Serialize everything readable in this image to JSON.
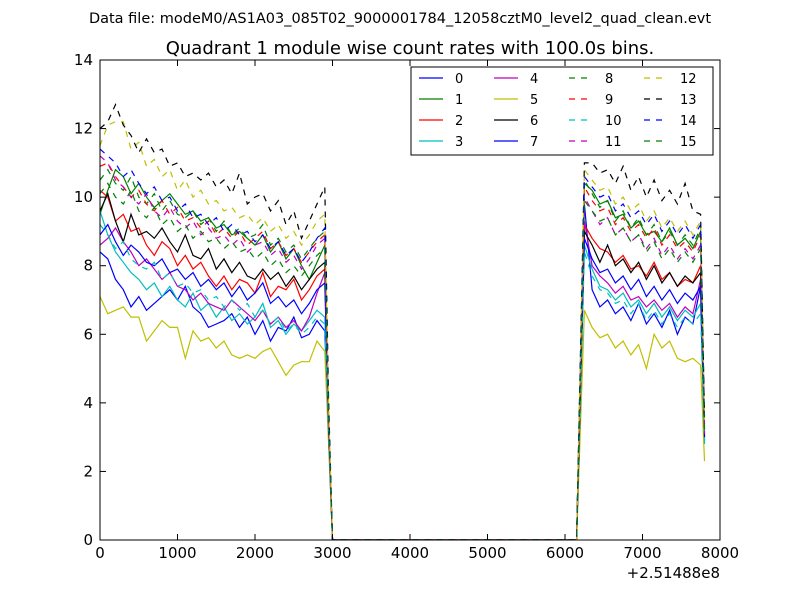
{
  "suptitle": "Data file: modeM0/AS1A03_085T02_9000001784_12058cztM0_level2_quad_clean.evt",
  "chart_data": {
    "type": "line",
    "title": "Quadrant 1 module wise count rates with 100.0s bins.",
    "xlabel": "",
    "ylabel": "",
    "xlim": [
      0,
      8000
    ],
    "ylim": [
      0,
      14
    ],
    "x_offset_label": "+2.51488e8",
    "x_ticks": [
      0,
      1000,
      2000,
      3000,
      4000,
      5000,
      6000,
      7000,
      8000
    ],
    "y_ticks": [
      0,
      2,
      4,
      6,
      8,
      10,
      12,
      14
    ],
    "x_tick_labels": [
      "0",
      "1000",
      "2000",
      "3000",
      "4000",
      "5000",
      "6000",
      "7000",
      "8000"
    ],
    "y_tick_labels": [
      "0",
      "2",
      "4",
      "6",
      "8",
      "10",
      "12",
      "14"
    ],
    "legend_position": "top-right",
    "legend_columns": 4,
    "segments": [
      {
        "x_start": 0,
        "x_end": 2900,
        "step": 100
      },
      {
        "x_start": 2950,
        "x_end": 3000,
        "step": 50
      },
      {
        "x_start": 3050,
        "x_end": 6150,
        "step": 100,
        "value": 0
      },
      {
        "x_start": 6250,
        "x_end": 7750,
        "step": 100
      }
    ],
    "series": [
      {
        "name": "0",
        "color": "#0000ff",
        "style": "solid",
        "first": [
          8.4,
          8.2,
          7.6,
          7.3,
          6.8,
          7.1,
          6.7,
          6.9,
          7.1,
          7.3,
          7.0,
          7.4,
          6.8,
          6.6,
          6.2,
          6.3,
          6.4,
          6.6,
          6.2,
          6.5,
          6.0,
          6.4,
          5.8,
          6.2,
          6.1,
          6.5,
          5.9,
          6.0,
          6.4,
          6.1
        ],
        "drop": [
          3.0,
          0.0
        ],
        "second": [
          9.8,
          7.3,
          6.8,
          7.0,
          6.6,
          6.8,
          6.4,
          6.9,
          6.3,
          6.6,
          6.2,
          6.7,
          6.0,
          6.5,
          6.3,
          7.4
        ],
        "end": 2.9
      },
      {
        "name": "1",
        "color": "#008000",
        "style": "solid",
        "first": [
          9.5,
          10.2,
          10.8,
          10.6,
          10.1,
          10.4,
          10.0,
          9.7,
          9.9,
          10.1,
          9.8,
          9.5,
          9.6,
          9.3,
          9.4,
          9.1,
          9.2,
          8.9,
          9.0,
          8.8,
          8.6,
          8.9,
          8.4,
          8.7,
          8.2,
          8.5,
          8.0,
          7.6,
          8.1,
          8.6
        ],
        "drop": [
          3.6,
          0.0
        ],
        "second": [
          10.4,
          10.2,
          9.8,
          9.9,
          9.4,
          9.5,
          9.1,
          9.3,
          8.9,
          9.0,
          8.7,
          9.1,
          8.6,
          8.8,
          8.5,
          9.0
        ],
        "end": 3.2
      },
      {
        "name": "2",
        "color": "#ff0000",
        "style": "solid",
        "first": [
          10.2,
          10.0,
          9.3,
          9.5,
          9.0,
          9.1,
          8.6,
          8.3,
          8.7,
          8.5,
          8.0,
          8.3,
          7.9,
          8.1,
          7.7,
          7.4,
          7.7,
          7.3,
          7.6,
          7.5,
          7.2,
          7.8,
          7.1,
          7.4,
          7.3,
          7.6,
          7.0,
          7.3,
          7.7,
          7.9
        ],
        "drop": [
          3.3,
          0.0
        ],
        "second": [
          9.2,
          8.8,
          8.5,
          8.4,
          8.1,
          8.3,
          7.9,
          8.0,
          7.7,
          8.1,
          7.6,
          7.8,
          7.4,
          7.6,
          7.5,
          8.0
        ],
        "end": 3.0
      },
      {
        "name": "3",
        "color": "#00bfbf",
        "style": "solid",
        "first": [
          9.6,
          8.9,
          8.4,
          8.1,
          7.8,
          7.6,
          7.3,
          7.5,
          7.1,
          7.4,
          7.0,
          6.8,
          7.2,
          6.7,
          6.9,
          6.5,
          6.8,
          6.4,
          6.6,
          6.3,
          6.5,
          6.9,
          6.2,
          6.4,
          6.0,
          6.3,
          6.1,
          6.4,
          6.7,
          6.5
        ],
        "drop": [
          3.1,
          0.0
        ],
        "second": [
          8.6,
          7.9,
          7.4,
          7.3,
          7.0,
          7.2,
          6.8,
          7.0,
          6.6,
          6.9,
          6.5,
          6.8,
          6.4,
          6.7,
          6.5,
          6.9
        ],
        "end": 2.9
      },
      {
        "name": "4",
        "color": "#bf00bf",
        "style": "solid",
        "first": [
          8.6,
          8.8,
          9.1,
          8.7,
          8.4,
          8.0,
          8.2,
          7.9,
          7.6,
          7.8,
          7.4,
          7.3,
          7.0,
          7.2,
          6.9,
          6.8,
          6.7,
          7.0,
          6.8,
          6.6,
          6.4,
          6.7,
          6.3,
          6.5,
          6.2,
          6.4,
          6.1,
          6.5,
          7.2,
          7.8
        ],
        "drop": [
          3.2,
          0.0
        ],
        "second": [
          9.3,
          8.0,
          7.7,
          7.5,
          7.2,
          7.4,
          7.0,
          7.1,
          6.8,
          7.0,
          6.7,
          6.9,
          6.5,
          6.8,
          6.6,
          7.6
        ],
        "end": 3.0
      },
      {
        "name": "5",
        "color": "#bfbf00",
        "style": "solid",
        "first": [
          7.1,
          6.6,
          6.7,
          6.8,
          6.5,
          6.5,
          5.8,
          6.1,
          6.4,
          6.2,
          6.2,
          5.3,
          6.1,
          5.8,
          5.9,
          5.6,
          5.8,
          5.4,
          5.3,
          5.4,
          5.3,
          5.5,
          5.6,
          5.2,
          4.8,
          5.1,
          5.2,
          5.2,
          5.8,
          5.5
        ],
        "drop": [
          2.8,
          0.0
        ],
        "second": [
          6.7,
          6.2,
          5.9,
          6.0,
          5.6,
          5.8,
          5.4,
          5.7,
          5.0,
          6.0,
          5.6,
          5.8,
          5.3,
          5.2,
          5.3,
          5.1
        ],
        "end": 2.3
      },
      {
        "name": "6",
        "color": "#000000",
        "style": "solid",
        "first": [
          9.6,
          10.1,
          9.3,
          8.7,
          9.5,
          8.9,
          9.0,
          8.8,
          9.1,
          8.7,
          8.4,
          8.9,
          8.3,
          8.2,
          8.5,
          7.9,
          8.2,
          7.8,
          8.1,
          7.7,
          7.6,
          7.9,
          7.6,
          7.8,
          7.4,
          7.7,
          7.3,
          7.6,
          7.9,
          8.1
        ],
        "drop": [
          3.4,
          0.0
        ],
        "second": [
          9.0,
          8.6,
          8.1,
          8.6,
          8.0,
          8.2,
          7.8,
          8.1,
          7.6,
          8.0,
          7.5,
          7.8,
          7.4,
          7.7,
          7.5,
          7.8
        ],
        "end": 3.1
      },
      {
        "name": "7",
        "color": "#0000ff",
        "style": "solid",
        "first": [
          8.9,
          9.2,
          8.7,
          8.3,
          8.6,
          8.4,
          8.1,
          8.0,
          8.2,
          7.8,
          7.9,
          7.6,
          7.8,
          7.4,
          7.6,
          7.3,
          7.5,
          7.1,
          7.4,
          7.0,
          7.2,
          7.5,
          6.9,
          7.1,
          6.8,
          7.0,
          6.6,
          6.9,
          7.3,
          7.5
        ],
        "drop": [
          3.2,
          0.0
        ],
        "second": [
          8.8,
          8.2,
          7.8,
          7.9,
          7.5,
          7.7,
          7.3,
          7.6,
          7.1,
          7.4,
          7.0,
          7.3,
          6.9,
          7.2,
          7.0,
          7.4
        ],
        "end": 3.0
      },
      {
        "name": "8",
        "color": "#008000",
        "style": "dashed",
        "first": [
          10.5,
          10.8,
          10.4,
          10.2,
          10.6,
          10.0,
          9.8,
          10.1,
          9.6,
          9.9,
          9.5,
          9.4,
          9.6,
          9.2,
          9.4,
          9.0,
          9.3,
          8.9,
          9.1,
          8.8,
          8.9,
          9.2,
          8.6,
          8.8,
          8.4,
          8.6,
          8.2,
          8.5,
          8.8,
          9.0
        ],
        "drop": [
          3.7,
          0.0
        ],
        "second": [
          10.5,
          10.1,
          9.7,
          9.9,
          9.3,
          9.6,
          9.1,
          9.4,
          8.9,
          9.2,
          8.7,
          9.0,
          8.6,
          8.9,
          8.6,
          9.1
        ],
        "end": 3.3
      },
      {
        "name": "9",
        "color": "#ff0000",
        "style": "dashed",
        "first": [
          10.9,
          11.0,
          10.6,
          10.3,
          10.0,
          10.2,
          9.8,
          9.6,
          9.9,
          9.5,
          9.7,
          9.3,
          9.4,
          9.1,
          9.3,
          8.9,
          9.1,
          8.8,
          9.0,
          8.6,
          8.8,
          9.0,
          8.5,
          8.7,
          8.3,
          8.5,
          8.1,
          8.4,
          8.7,
          8.9
        ],
        "drop": [
          3.5,
          0.0
        ],
        "second": [
          10.3,
          9.9,
          9.6,
          9.7,
          9.2,
          9.4,
          9.0,
          9.2,
          8.8,
          9.1,
          8.6,
          8.9,
          8.5,
          8.7,
          8.4,
          8.9
        ],
        "end": 3.2
      },
      {
        "name": "10",
        "color": "#00bfbf",
        "style": "dashed",
        "first": [
          9.2,
          8.9,
          8.5,
          8.7,
          8.2,
          8.0,
          7.9,
          8.1,
          7.6,
          7.8,
          7.4,
          7.5,
          7.2,
          7.3,
          7.0,
          7.1,
          6.8,
          7.0,
          6.7,
          6.9,
          6.5,
          6.7,
          6.3,
          6.5,
          6.1,
          6.3,
          6.0,
          6.2,
          6.5,
          6.3
        ],
        "drop": [
          3.0,
          0.0
        ],
        "second": [
          8.4,
          7.7,
          7.3,
          7.2,
          6.9,
          7.0,
          6.6,
          6.9,
          6.4,
          6.7,
          6.3,
          6.6,
          6.2,
          6.5,
          6.3,
          6.6
        ],
        "end": 2.8
      },
      {
        "name": "11",
        "color": "#bf00bf",
        "style": "dashed",
        "first": [
          11.2,
          11.0,
          10.5,
          10.3,
          10.0,
          9.8,
          10.1,
          9.6,
          9.4,
          9.7,
          9.3,
          9.1,
          9.3,
          8.9,
          9.1,
          8.8,
          8.9,
          8.6,
          8.8,
          8.4,
          8.6,
          8.7,
          8.3,
          8.5,
          8.1,
          8.3,
          7.9,
          8.2,
          8.6,
          8.8
        ],
        "drop": [
          3.4,
          0.0
        ],
        "second": [
          10.0,
          9.6,
          9.2,
          9.4,
          8.9,
          9.1,
          8.7,
          8.9,
          8.5,
          8.8,
          8.3,
          8.6,
          8.2,
          8.5,
          8.2,
          8.6
        ],
        "end": 3.1
      },
      {
        "name": "12",
        "color": "#bfbf00",
        "style": "dashed",
        "first": [
          11.5,
          12.1,
          12.2,
          12.2,
          11.4,
          11.6,
          10.9,
          11.1,
          10.6,
          10.8,
          10.2,
          10.5,
          10.0,
          10.2,
          9.8,
          9.9,
          9.6,
          9.7,
          9.4,
          9.5,
          9.2,
          9.4,
          9.0,
          9.2,
          8.8,
          9.0,
          8.6,
          8.9,
          9.3,
          9.5
        ],
        "drop": [
          3.9,
          0.0
        ],
        "second": [
          10.8,
          10.5,
          10.2,
          10.3,
          9.8,
          10.0,
          9.6,
          9.8,
          9.3,
          9.6,
          9.1,
          9.4,
          9.0,
          9.3,
          8.9,
          9.3
        ],
        "end": 3.5
      },
      {
        "name": "13",
        "color": "#000000",
        "style": "dashed",
        "first": [
          12.0,
          12.2,
          12.7,
          12.1,
          11.8,
          11.3,
          11.7,
          11.3,
          11.4,
          10.9,
          11.0,
          10.6,
          10.7,
          10.5,
          10.7,
          10.3,
          10.5,
          10.1,
          10.7,
          9.8,
          10.0,
          10.1,
          9.6,
          9.9,
          9.2,
          9.6,
          8.8,
          9.3,
          9.8,
          10.3
        ],
        "drop": [
          4.1,
          0.0
        ],
        "second": [
          11.0,
          11.0,
          10.7,
          10.8,
          10.4,
          10.9,
          10.2,
          10.6,
          10.0,
          10.5,
          9.9,
          10.2,
          9.8,
          10.4,
          9.6,
          9.5
        ],
        "end": 3.6
      },
      {
        "name": "14",
        "color": "#0000ff",
        "style": "dashed",
        "first": [
          11.4,
          11.2,
          11.0,
          10.6,
          10.8,
          10.4,
          10.1,
          10.3,
          9.9,
          10.0,
          9.6,
          9.8,
          9.4,
          9.5,
          9.2,
          9.4,
          9.0,
          9.2,
          8.9,
          9.0,
          8.7,
          8.9,
          8.5,
          8.7,
          8.3,
          8.5,
          8.1,
          8.4,
          8.8,
          9.1
        ],
        "drop": [
          3.7,
          0.0
        ],
        "second": [
          10.6,
          10.3,
          10.0,
          10.1,
          9.6,
          9.8,
          9.4,
          9.6,
          9.2,
          9.5,
          9.0,
          9.3,
          8.9,
          9.2,
          8.8,
          9.2
        ],
        "end": 3.4
      },
      {
        "name": "15",
        "color": "#008000",
        "style": "dashed",
        "first": [
          10.1,
          10.4,
          10.0,
          9.8,
          10.2,
          9.6,
          9.4,
          9.7,
          9.2,
          9.4,
          9.0,
          9.2,
          8.8,
          9.0,
          8.7,
          8.8,
          8.5,
          8.7,
          8.4,
          8.5,
          8.2,
          8.4,
          8.0,
          8.2,
          7.8,
          8.0,
          7.7,
          8.0,
          8.3,
          8.5
        ],
        "drop": [
          3.5,
          0.0
        ],
        "second": [
          9.9,
          9.6,
          9.3,
          9.4,
          8.9,
          9.1,
          8.7,
          8.9,
          8.4,
          8.7,
          8.2,
          8.5,
          8.1,
          8.4,
          8.1,
          8.5
        ],
        "end": 3.1
      }
    ]
  }
}
